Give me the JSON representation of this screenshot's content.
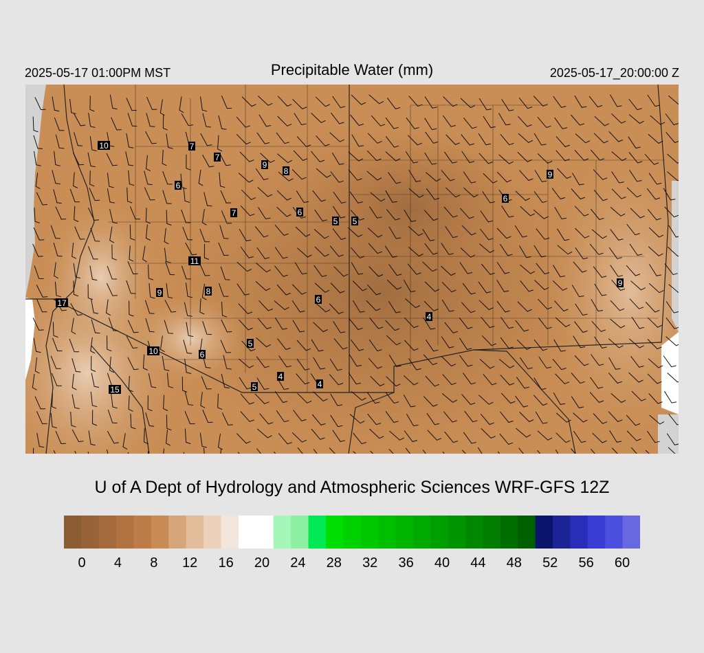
{
  "header": {
    "local_time": "2025-05-17 01:00PM MST",
    "title": "Precipitable Water (mm)",
    "valid_time": "2025-05-17_20:00:00 Z"
  },
  "credit": "U of A Dept of Hydrology and Atmospheric Sciences WRF-GFS 12Z",
  "colorbar": {
    "colors": [
      "#8c5d35",
      "#996339",
      "#a56b3d",
      "#b17342",
      "#bd7c48",
      "#c98b55",
      "#d6a67a",
      "#e2bc9b",
      "#ecd2bd",
      "#f3e6dc",
      "#ffffff",
      "#ffffff",
      "#a4f7b8",
      "#8ef0a2",
      "#00ea55",
      "#00dd00",
      "#00d200",
      "#00c800",
      "#00be00",
      "#00b400",
      "#00aa00",
      "#009f00",
      "#009400",
      "#008800",
      "#007c00",
      "#006f00",
      "#005f00",
      "#0b136b",
      "#1b2396",
      "#2a2db7",
      "#3a3dd3",
      "#4b4fde",
      "#6868e0"
    ],
    "labels": [
      "0",
      "4",
      "8",
      "12",
      "16",
      "20",
      "24",
      "28",
      "32",
      "36",
      "40",
      "44",
      "48",
      "52",
      "56",
      "60"
    ]
  },
  "stations": [
    {
      "value": "10"
    },
    {
      "value": "7"
    },
    {
      "value": "7"
    },
    {
      "value": "9"
    },
    {
      "value": "8"
    },
    {
      "value": "6"
    },
    {
      "value": "7"
    },
    {
      "value": "6"
    },
    {
      "value": "5"
    },
    {
      "value": "5"
    },
    {
      "value": "9"
    },
    {
      "value": "6"
    },
    {
      "value": "11"
    },
    {
      "value": "9"
    },
    {
      "value": "8"
    },
    {
      "value": "6"
    },
    {
      "value": "9"
    },
    {
      "value": "17"
    },
    {
      "value": "4"
    },
    {
      "value": "10"
    },
    {
      "value": "6"
    },
    {
      "value": "5"
    },
    {
      "value": "4"
    },
    {
      "value": "4"
    },
    {
      "value": "5"
    },
    {
      "value": "15"
    }
  ]
}
